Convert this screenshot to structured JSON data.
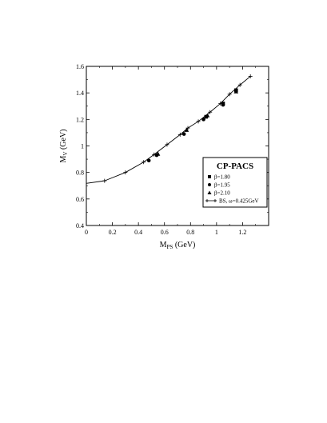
{
  "chart_data": {
    "type": "scatter",
    "xlabel": "M",
    "xlabel_sub": "PS",
    "xlabel_unit": " (GeV)",
    "ylabel": "M",
    "ylabel_sub": "V",
    "ylabel_unit": " (GeV)",
    "xlim": [
      0,
      1.4
    ],
    "ylim": [
      0.4,
      1.6
    ],
    "x_ticks": [
      0,
      0.2,
      0.4,
      0.6,
      0.8,
      1,
      1.2
    ],
    "x_tick_labels": [
      "0",
      "0.2",
      "0.4",
      "0.6",
      "0.8",
      "1",
      "1.2"
    ],
    "y_ticks": [
      0.4,
      0.6,
      0.8,
      1.0,
      1.2,
      1.4,
      1.6
    ],
    "y_tick_labels": [
      "0.4",
      "0.6",
      "0.8",
      "1",
      "1.2",
      "1.4",
      "1.6"
    ],
    "grid": false,
    "legend": {
      "title": "CP-PACS",
      "placement": "right",
      "entries": [
        {
          "marker": "square",
          "label": "β=1.80"
        },
        {
          "marker": "circle",
          "label": "β=1.95"
        },
        {
          "marker": "triangle",
          "label": "β=2.10"
        },
        {
          "marker": "plus-line",
          "label": "BS, ω=0.425GeV"
        }
      ]
    },
    "series": [
      {
        "name": "β=1.80",
        "marker": "square",
        "points": [
          [
            0.92,
            1.22
          ],
          [
            1.05,
            1.32
          ],
          [
            1.15,
            1.42
          ]
        ]
      },
      {
        "name": "β=1.95",
        "marker": "circle",
        "points": [
          [
            0.48,
            0.89
          ],
          [
            0.54,
            0.93
          ],
          [
            0.75,
            1.09
          ],
          [
            0.9,
            1.2
          ],
          [
            1.05,
            1.31
          ]
        ]
      },
      {
        "name": "β=2.10",
        "marker": "triangle",
        "points": [
          [
            0.55,
            0.94
          ],
          [
            0.77,
            1.12
          ],
          [
            0.93,
            1.23
          ],
          [
            1.15,
            1.41
          ]
        ]
      },
      {
        "name": "BS, ω=0.425GeV",
        "marker": "plus-line",
        "points": [
          [
            0.0,
            0.718
          ],
          [
            0.14,
            0.737
          ],
          [
            0.3,
            0.8
          ],
          [
            0.44,
            0.878
          ],
          [
            0.52,
            0.935
          ],
          [
            0.62,
            1.01
          ],
          [
            0.72,
            1.085
          ],
          [
            0.78,
            1.135
          ],
          [
            0.86,
            1.185
          ],
          [
            0.95,
            1.255
          ],
          [
            1.03,
            1.32
          ],
          [
            1.1,
            1.39
          ],
          [
            1.18,
            1.46
          ],
          [
            1.26,
            1.525
          ]
        ]
      }
    ]
  }
}
